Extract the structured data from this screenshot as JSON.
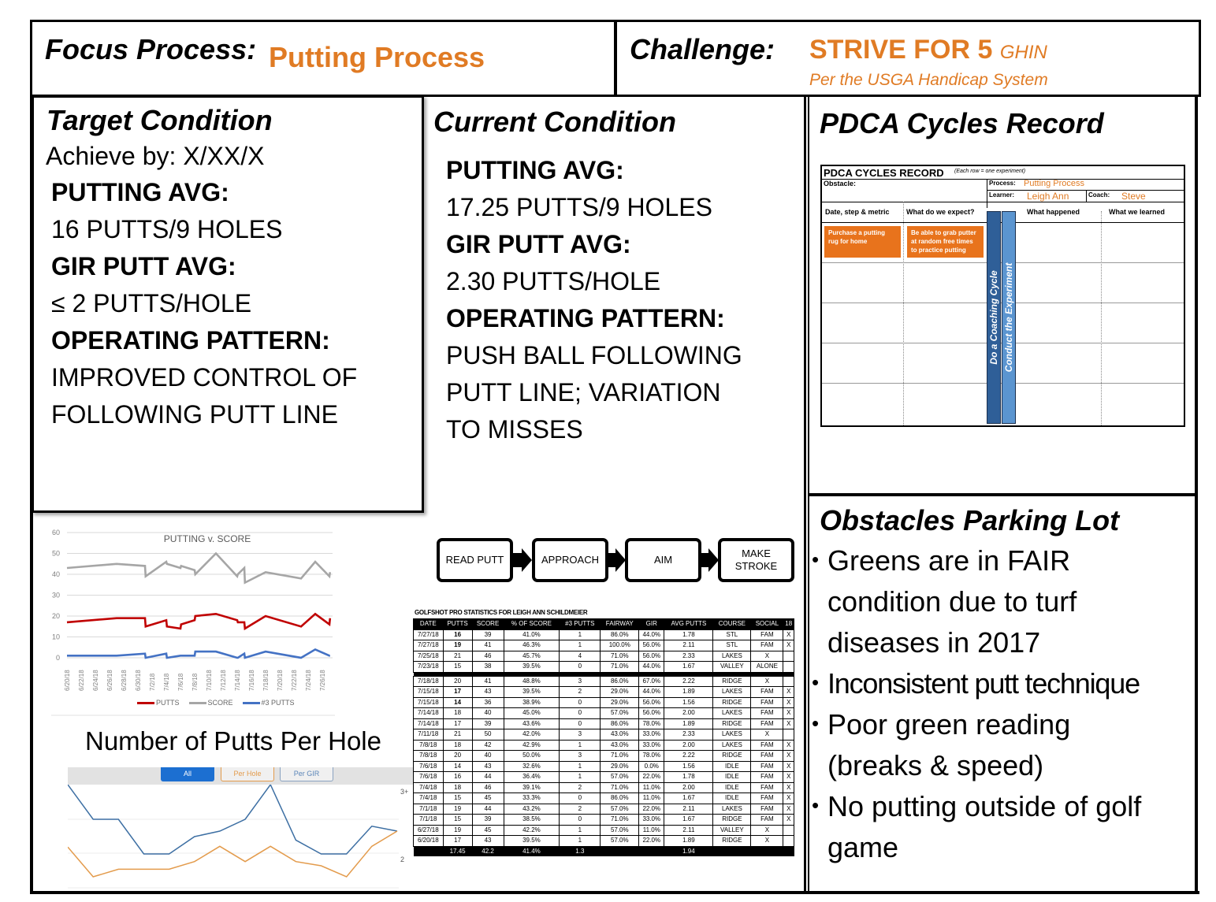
{
  "header": {
    "focus_label": "Focus Process:",
    "focus_value": "Putting Process",
    "challenge_label": "Challenge:",
    "challenge_value": "STRIVE FOR 5",
    "challenge_suffix": "GHIN",
    "challenge_sub": "Per the USGA Handicap System"
  },
  "colors": {
    "accent_orange": "#e07b24",
    "putts_red": "#c00000",
    "score_gray": "#a6a6a6",
    "three_putts_blue": "#4472c4",
    "all_blue": "#1c6fd1",
    "per_hole_orange": "#e39b4c",
    "coaching_dark_blue": "#2f5f98",
    "experiment_light_blue": "#5b95d0"
  },
  "target": {
    "title": "Target Condition",
    "achieve_by": "Achieve by: X/XX/X",
    "putting_avg_label": "PUTTING AVG:",
    "putting_avg_value": "16 PUTTS/9 HOLES",
    "gir_label": "GIR PUTT AVG:",
    "gir_value": "≤ 2 PUTTS/HOLE",
    "pattern_label": "OPERATING PATTERN:",
    "pattern_line1": "IMPROVED CONTROL OF",
    "pattern_line2": "FOLLOWING PUTT LINE"
  },
  "current": {
    "title": "Current Condition",
    "putting_avg_label": "PUTTING AVG:",
    "putting_avg_value": "17.25 PUTTS/9 HOLES",
    "gir_label": "GIR PUTT AVG:",
    "gir_value": "2.30 PUTTS/HOLE",
    "pattern_label": "OPERATING PATTERN:",
    "pattern_line1": "PUSH BALL FOLLOWING",
    "pattern_line2": "PUTT LINE; VARIATION",
    "pattern_line3": "TO MISSES"
  },
  "pdca": {
    "title": "PDCA Cycles Record",
    "form_title": "PDCA CYCLES RECORD",
    "form_note": "(Each row = one experiment)",
    "obstacle_label": "Obstacle:",
    "process_label": "Process:",
    "process_value": "Putting Process",
    "learner_label": "Learner:",
    "learner_value": "Leigh Ann",
    "coach_label": "Coach:",
    "coach_value": "Steve",
    "columns": [
      "Date, step & metric",
      "What do we expect?",
      "What happened",
      "What we learned"
    ],
    "first_step": "Purchase a putting rug for home",
    "first_expect": "Be able to grab putter at random free times to practice putting",
    "bar_coaching": "Do a Coaching Cycle",
    "bar_experiment": "Conduct the Experiment"
  },
  "obstacles": {
    "title": "Obstacles Parking Lot",
    "items": [
      {
        "l1": "Greens are in FAIR",
        "l2": "condition due to turf",
        "l3": "diseases in 2017"
      },
      {
        "l1": "Inconsistent putt technique"
      },
      {
        "l1": "Poor green reading",
        "l2": "(breaks & speed)"
      },
      {
        "l1": "No putting outside of golf",
        "l2": "game"
      }
    ]
  },
  "process_flow": {
    "steps": [
      "READ PUTT",
      "APPROACH",
      "AIM",
      "MAKE STROKE"
    ]
  },
  "stats_table": {
    "title": "GOLFSHOT PRO STATISTICS FOR LEIGH ANN SCHILDMEIER",
    "headers": [
      "DATE",
      "PUTTS",
      "SCORE",
      "% OF SCORE",
      "#3 PUTTS",
      "FAIRWAY",
      "GIR",
      "AVG PUTTS",
      "COURSE",
      "SOCIAL",
      "18"
    ],
    "rows_top": [
      [
        "7/27/18",
        "16",
        "39",
        "41.0%",
        "1",
        "86.0%",
        "44.0%",
        "1.78",
        "STL",
        "FAM",
        "X"
      ],
      [
        "7/27/18",
        "19",
        "41",
        "46.3%",
        "1",
        "100.0%",
        "56.0%",
        "2.11",
        "STL",
        "FAM",
        "X"
      ],
      [
        "7/25/18",
        "21",
        "46",
        "45.7%",
        "4",
        "71.0%",
        "56.0%",
        "2.33",
        "LAKES",
        "X",
        ""
      ],
      [
        "7/23/18",
        "15",
        "38",
        "39.5%",
        "0",
        "71.0%",
        "44.0%",
        "1.67",
        "VALLEY",
        "ALONE",
        ""
      ]
    ],
    "rows_bottom": [
      [
        "7/18/18",
        "20",
        "41",
        "48.8%",
        "3",
        "86.0%",
        "67.0%",
        "2.22",
        "RIDGE",
        "X",
        ""
      ],
      [
        "7/15/18",
        "17",
        "43",
        "39.5%",
        "2",
        "29.0%",
        "44.0%",
        "1.89",
        "LAKES",
        "FAM",
        "X"
      ],
      [
        "7/15/18",
        "14",
        "36",
        "38.9%",
        "0",
        "29.0%",
        "56.0%",
        "1.56",
        "RIDGE",
        "FAM",
        "X"
      ],
      [
        "7/14/18",
        "18",
        "40",
        "45.0%",
        "0",
        "57.0%",
        "56.0%",
        "2.00",
        "LAKES",
        "FAM",
        "X"
      ],
      [
        "7/14/18",
        "17",
        "39",
        "43.6%",
        "0",
        "86.0%",
        "78.0%",
        "1.89",
        "RIDGE",
        "FAM",
        "X"
      ],
      [
        "7/11/18",
        "21",
        "50",
        "42.0%",
        "3",
        "43.0%",
        "33.0%",
        "2.33",
        "LAKES",
        "X",
        ""
      ],
      [
        "7/8/18",
        "18",
        "42",
        "42.9%",
        "1",
        "43.0%",
        "33.0%",
        "2.00",
        "LAKES",
        "FAM",
        "X"
      ],
      [
        "7/8/18",
        "20",
        "40",
        "50.0%",
        "3",
        "71.0%",
        "78.0%",
        "2.22",
        "RIDGE",
        "FAM",
        "X"
      ],
      [
        "7/6/18",
        "14",
        "43",
        "32.6%",
        "1",
        "29.0%",
        "0.0%",
        "1.56",
        "IDLE",
        "FAM",
        "X"
      ],
      [
        "7/6/18",
        "16",
        "44",
        "36.4%",
        "1",
        "57.0%",
        "22.0%",
        "1.78",
        "IDLE",
        "FAM",
        "X"
      ],
      [
        "7/4/18",
        "18",
        "46",
        "39.1%",
        "2",
        "71.0%",
        "11.0%",
        "2.00",
        "IDLE",
        "FAM",
        "X"
      ],
      [
        "7/4/18",
        "15",
        "45",
        "33.3%",
        "0",
        "86.0%",
        "11.0%",
        "1.67",
        "IDLE",
        "FAM",
        "X"
      ],
      [
        "7/1/18",
        "19",
        "44",
        "43.2%",
        "2",
        "57.0%",
        "22.0%",
        "2.11",
        "LAKES",
        "FAM",
        "X"
      ],
      [
        "7/1/18",
        "15",
        "39",
        "38.5%",
        "0",
        "71.0%",
        "33.0%",
        "1.67",
        "RIDGE",
        "FAM",
        "X"
      ],
      [
        "6/27/18",
        "19",
        "45",
        "42.2%",
        "1",
        "57.0%",
        "11.0%",
        "2.11",
        "VALLEY",
        "X",
        ""
      ],
      [
        "6/20/18",
        "17",
        "43",
        "39.5%",
        "1",
        "57.0%",
        "22.0%",
        "1.89",
        "RIDGE",
        "X",
        ""
      ]
    ],
    "totals": [
      "",
      "17.45",
      "42.2",
      "41.4%",
      "1.3",
      "",
      "",
      "1.94",
      "",
      "",
      ""
    ]
  },
  "putts_per_hole": {
    "title": "Number of Putts Per Hole",
    "tabs": [
      "All",
      "Per Hole",
      "Per GIR"
    ],
    "y_labels": [
      "3+",
      "2"
    ]
  },
  "chart_data": [
    {
      "type": "line",
      "title": "PUTTING v. SCORE",
      "xlabel": "",
      "ylabel": "",
      "ylim": [
        0,
        60
      ],
      "yticks": [
        0,
        10,
        20,
        30,
        40,
        50,
        60
      ],
      "grid": true,
      "legend_position": "bottom",
      "x_tick_labels": [
        "6/20/18",
        "6/22/18",
        "6/24/18",
        "6/26/18",
        "6/28/18",
        "6/30/18",
        "7/2/18",
        "7/4/18",
        "7/6/18",
        "7/8/18",
        "7/10/18",
        "7/12/18",
        "7/14/18",
        "7/16/18",
        "7/18/18",
        "7/20/18",
        "7/22/18",
        "7/24/18",
        "7/26/18"
      ],
      "x": [
        "6/20/18",
        "6/27/18",
        "7/1/18",
        "7/1/18",
        "7/4/18",
        "7/4/18",
        "7/6/18",
        "7/6/18",
        "7/8/18",
        "7/8/18",
        "7/11/18",
        "7/14/18",
        "7/14/18",
        "7/15/18",
        "7/15/18",
        "7/18/18",
        "7/23/18",
        "7/25/18",
        "7/27/18",
        "7/27/18"
      ],
      "series": [
        {
          "name": "PUTTS",
          "color": "#c00000",
          "values": [
            17,
            19,
            19,
            15,
            18,
            15,
            14,
            16,
            18,
            20,
            21,
            18,
            17,
            17,
            14,
            20,
            15,
            21,
            16,
            19
          ]
        },
        {
          "name": "SCORE",
          "color": "#a6a6a6",
          "values": [
            43,
            45,
            44,
            39,
            46,
            45,
            43,
            44,
            42,
            40,
            50,
            39,
            40,
            43,
            36,
            41,
            38,
            46,
            39,
            41
          ]
        },
        {
          "name": "#3 PUTTS",
          "color": "#4472c4",
          "values": [
            1,
            1,
            2,
            0,
            2,
            0,
            1,
            1,
            1,
            3,
            3,
            0,
            0,
            2,
            0,
            3,
            0,
            4,
            1,
            1
          ]
        }
      ]
    },
    {
      "type": "line",
      "title": "Number of Putts Per Hole",
      "xlabel": "",
      "ylabel": "",
      "y_tick_labels": [
        "2",
        "3+"
      ],
      "ylim": [
        1.6,
        3.2
      ],
      "grid": true,
      "legend": [
        "All",
        "Per Hole",
        "Per GIR"
      ],
      "x": [
        1,
        2,
        3,
        4,
        5,
        6,
        7,
        8,
        9,
        10,
        11,
        12,
        13,
        14
      ],
      "series": [
        {
          "name": "All",
          "color": "#3d6fa3",
          "values": [
            3.0,
            2.5,
            2.5,
            2.0,
            2.0,
            2.25,
            2.33,
            2.5,
            3.0,
            2.2,
            2.0,
            2.0,
            2.4,
            2.33
          ]
        },
        {
          "name": "Per Hole",
          "color": "#e39b4c",
          "values": [
            2.1,
            1.67,
            1.78,
            1.78,
            1.78,
            1.89,
            2.11,
            1.89,
            2.11,
            1.89,
            1.83,
            1.67,
            2.11,
            2.33
          ]
        }
      ]
    }
  ]
}
